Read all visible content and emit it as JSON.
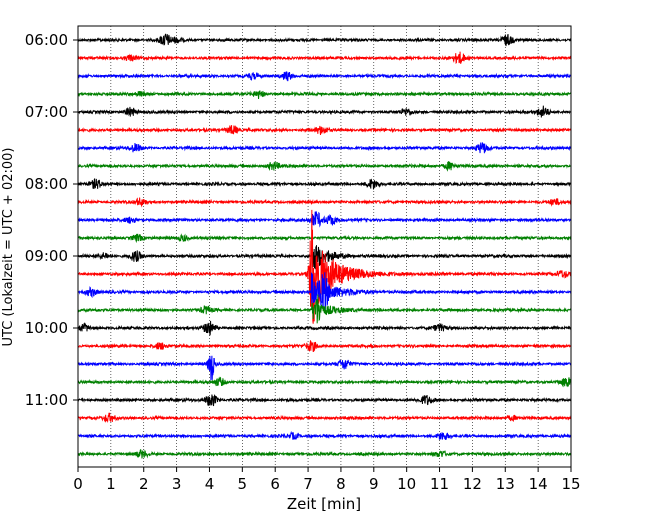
{
  "chart_data": {
    "type": "line",
    "subtype": "helicorder (seismogram drum plot)",
    "xlabel": "Zeit  [min]",
    "ylabel": "UTC (Lokalzeit = UTC + 02:00)",
    "xlim": [
      0,
      15
    ],
    "x_ticks": [
      0,
      1,
      2,
      3,
      4,
      5,
      6,
      7,
      8,
      9,
      10,
      11,
      12,
      13,
      14,
      15
    ],
    "y_ticks": [
      {
        "label": "06:00",
        "trace": 0
      },
      {
        "label": "07:00",
        "trace": 4
      },
      {
        "label": "08:00",
        "trace": 8
      },
      {
        "label": "09:00",
        "trace": 12
      },
      {
        "label": "10:00",
        "trace": 16
      },
      {
        "label": "11:00",
        "trace": 20
      }
    ],
    "trace_minutes": 15,
    "trace_colors": [
      "#000000",
      "#ff0000",
      "#0000ff",
      "#008000"
    ],
    "grid": "vertical dotted lines at each minute",
    "traces": [
      {
        "index": 0,
        "start": "06:00",
        "bursts": [
          {
            "t": 2.65,
            "a": 11
          },
          {
            "t": 3.0,
            "a": 4
          },
          {
            "t": 13.05,
            "a": 10
          }
        ]
      },
      {
        "index": 1,
        "start": "06:15",
        "bursts": [
          {
            "t": 1.6,
            "a": 5
          },
          {
            "t": 11.6,
            "a": 10
          }
        ]
      },
      {
        "index": 2,
        "start": "06:30",
        "bursts": [
          {
            "t": 5.3,
            "a": 5
          },
          {
            "t": 6.35,
            "a": 8
          }
        ]
      },
      {
        "index": 3,
        "start": "06:45",
        "bursts": [
          {
            "t": 1.9,
            "a": 4
          },
          {
            "t": 5.5,
            "a": 7
          }
        ]
      },
      {
        "index": 4,
        "start": "07:00",
        "bursts": [
          {
            "t": 1.6,
            "a": 8
          },
          {
            "t": 10.0,
            "a": 6
          },
          {
            "t": 14.15,
            "a": 10
          }
        ]
      },
      {
        "index": 5,
        "start": "07:15",
        "bursts": [
          {
            "t": 4.7,
            "a": 8
          },
          {
            "t": 7.4,
            "a": 7
          }
        ]
      },
      {
        "index": 6,
        "start": "07:30",
        "bursts": [
          {
            "t": 1.75,
            "a": 7
          },
          {
            "t": 12.3,
            "a": 9
          }
        ]
      },
      {
        "index": 7,
        "start": "07:45",
        "bursts": [
          {
            "t": 5.95,
            "a": 7
          },
          {
            "t": 11.3,
            "a": 7
          }
        ]
      },
      {
        "index": 8,
        "start": "08:00",
        "bursts": [
          {
            "t": 0.55,
            "a": 8
          },
          {
            "t": 8.95,
            "a": 9
          }
        ]
      },
      {
        "index": 9,
        "start": "08:15",
        "bursts": [
          {
            "t": 1.9,
            "a": 6
          },
          {
            "t": 14.5,
            "a": 5
          }
        ]
      },
      {
        "index": 10,
        "start": "08:30",
        "bursts": [
          {
            "t": 1.6,
            "a": 5
          },
          {
            "t": 7.25,
            "a": 14
          },
          {
            "t": 7.7,
            "a": 9
          }
        ]
      },
      {
        "index": 11,
        "start": "08:45",
        "bursts": [
          {
            "t": 1.8,
            "a": 6
          },
          {
            "t": 3.2,
            "a": 5
          }
        ]
      },
      {
        "index": 12,
        "start": "09:00",
        "bursts": [
          {
            "t": 0.8,
            "a": 5
          },
          {
            "t": 1.75,
            "a": 9
          }
        ]
      },
      {
        "index": 13,
        "start": "09:15",
        "bursts": [
          {
            "t": 7.1,
            "a": 75
          },
          {
            "t": 14.75,
            "a": 6
          }
        ]
      },
      {
        "index": 14,
        "start": "09:30",
        "bursts": [
          {
            "t": 0.4,
            "a": 7
          },
          {
            "t": 7.5,
            "a": 25
          }
        ]
      },
      {
        "index": 15,
        "start": "09:45",
        "bursts": [
          {
            "t": 3.9,
            "a": 6
          },
          {
            "t": 7.3,
            "a": 20
          }
        ]
      },
      {
        "index": 16,
        "start": "10:00",
        "bursts": [
          {
            "t": 0.2,
            "a": 6
          },
          {
            "t": 4.0,
            "a": 12
          },
          {
            "t": 11.0,
            "a": 6
          }
        ]
      },
      {
        "index": 17,
        "start": "10:15",
        "bursts": [
          {
            "t": 2.5,
            "a": 6
          },
          {
            "t": 7.1,
            "a": 9
          }
        ]
      },
      {
        "index": 18,
        "start": "10:30",
        "bursts": [
          {
            "t": 4.05,
            "a": 32
          },
          {
            "t": 8.1,
            "a": 9
          }
        ]
      },
      {
        "index": 19,
        "start": "10:45",
        "bursts": [
          {
            "t": 4.3,
            "a": 7
          },
          {
            "t": 14.85,
            "a": 8
          }
        ]
      },
      {
        "index": 20,
        "start": "11:00",
        "bursts": [
          {
            "t": 10.6,
            "a": 8
          },
          {
            "t": 4.05,
            "a": 12
          }
        ]
      },
      {
        "index": 21,
        "start": "11:15",
        "bursts": [
          {
            "t": 0.95,
            "a": 7
          },
          {
            "t": 13.2,
            "a": 4
          }
        ]
      },
      {
        "index": 22,
        "start": "11:30",
        "bursts": [
          {
            "t": 11.1,
            "a": 7
          },
          {
            "t": 6.55,
            "a": 5
          }
        ]
      },
      {
        "index": 23,
        "start": "11:45",
        "bursts": [
          {
            "t": 1.95,
            "a": 6
          },
          {
            "t": 11.05,
            "a": 5
          }
        ]
      }
    ],
    "event": {
      "start_trace": 13,
      "t_start": 7.1,
      "peak_amplitude": 75,
      "decay_minutes": 3.5
    }
  }
}
